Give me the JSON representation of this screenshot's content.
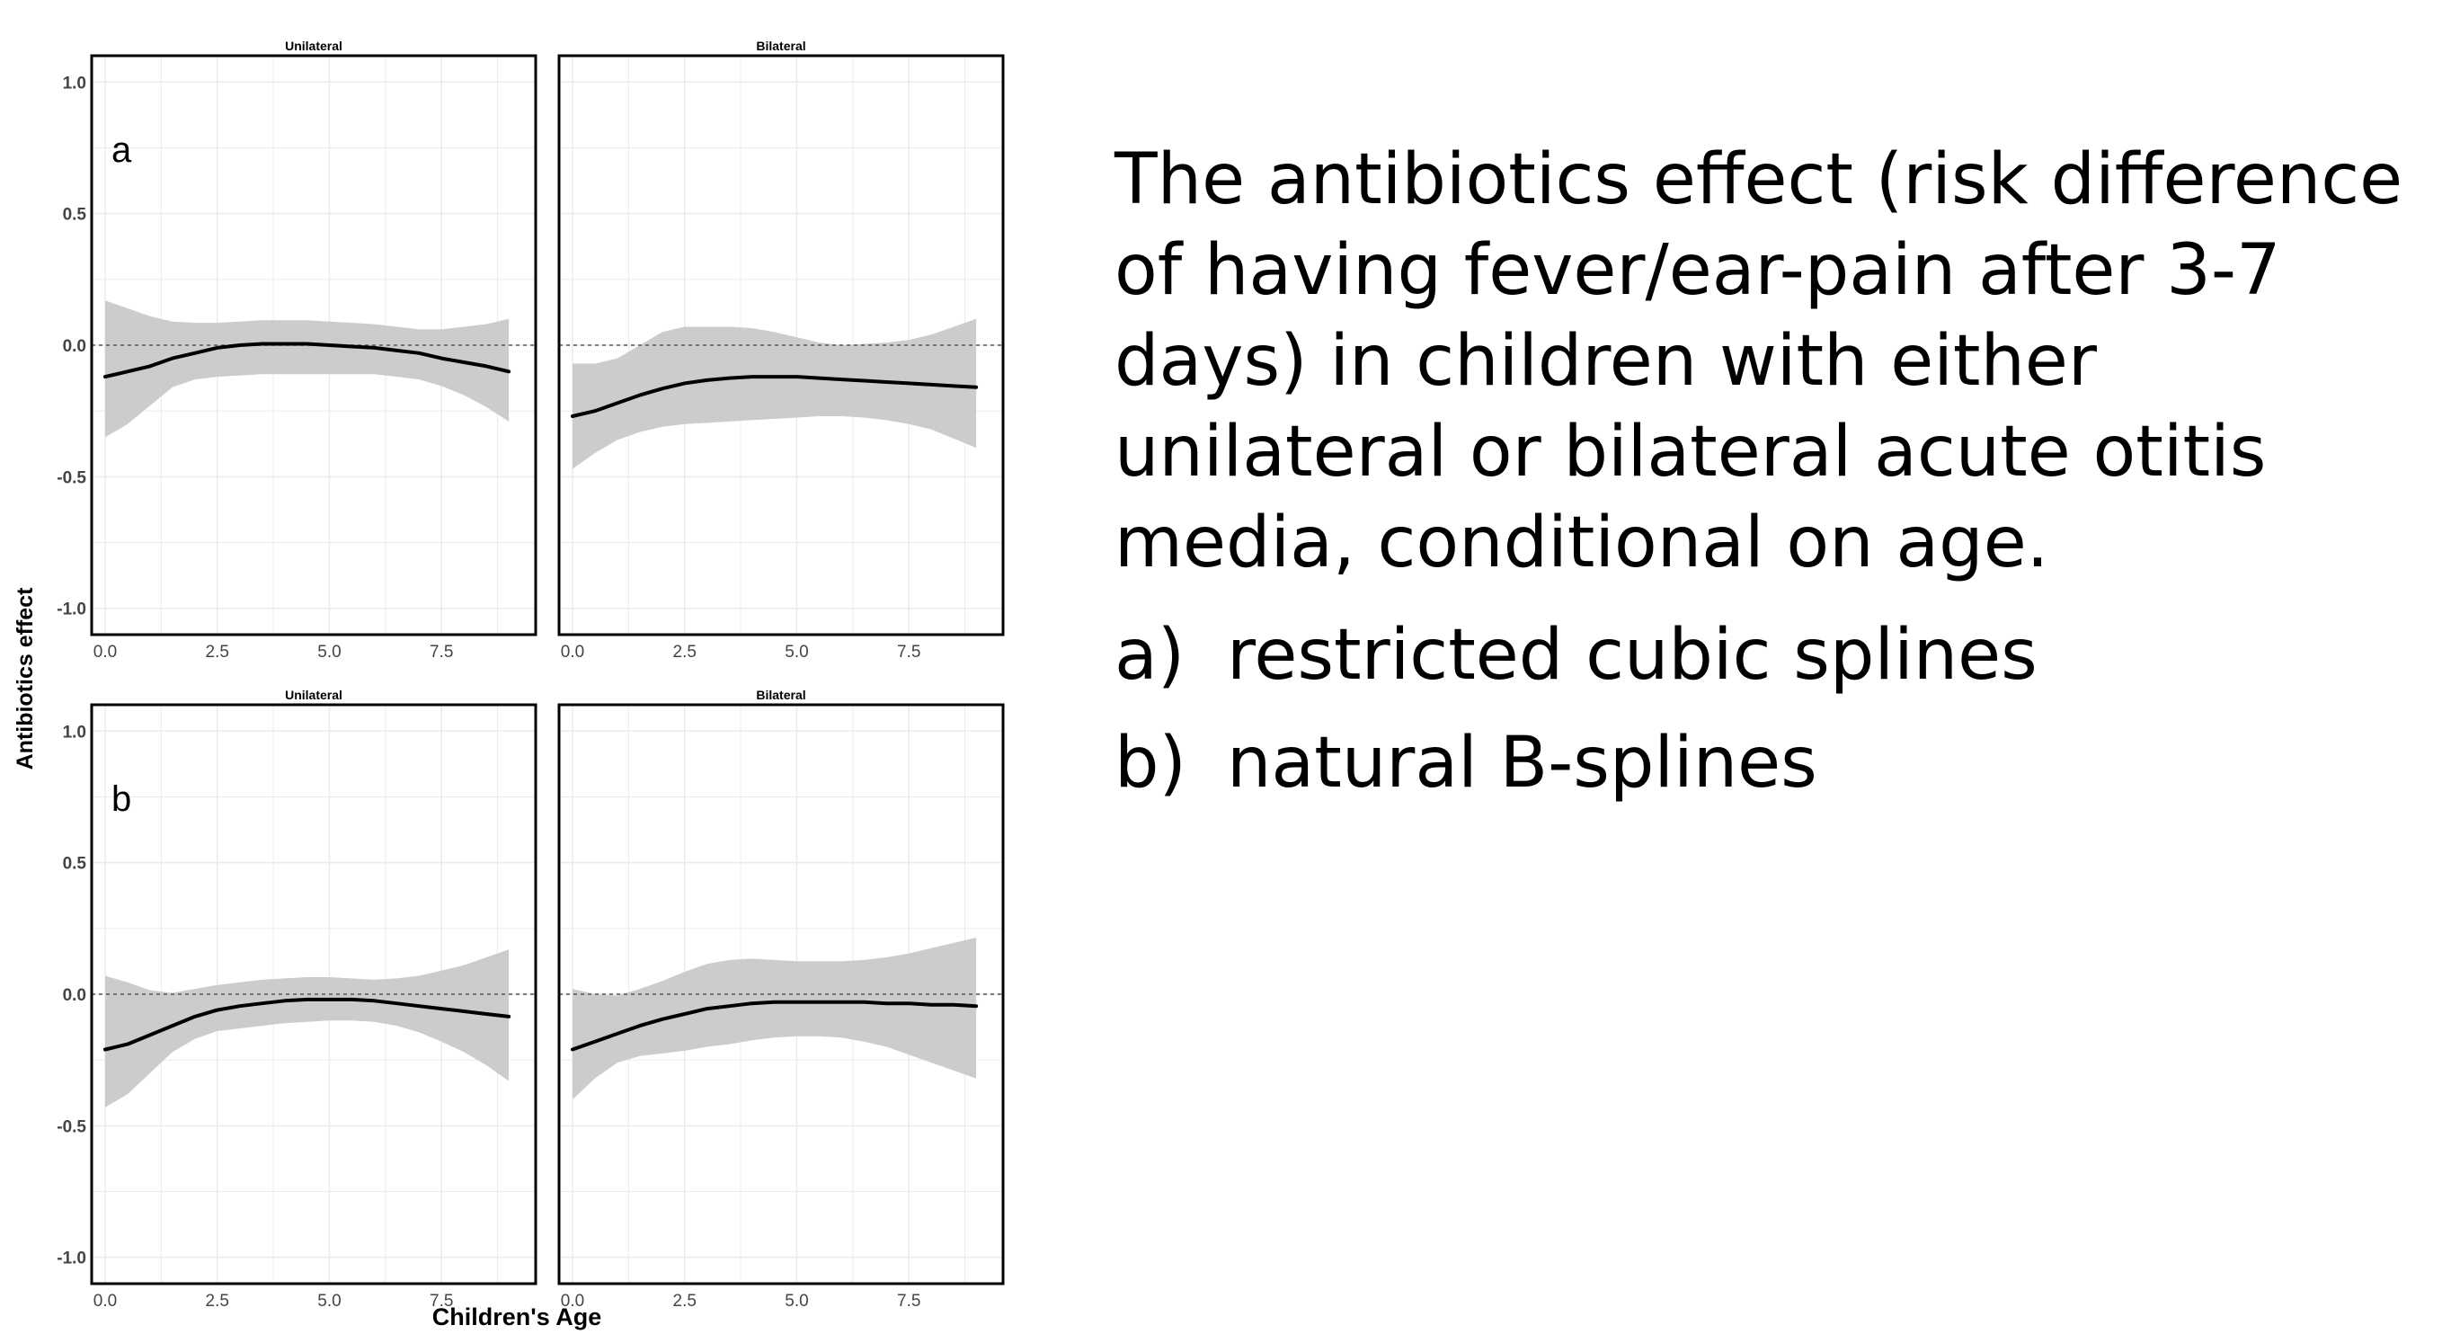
{
  "chart_data": {
    "type": "line",
    "xlabel": "Children's Age",
    "ylabel": "Antibiotics effect",
    "xlim": [
      -0.3,
      9.6
    ],
    "ylim": [
      -1.1,
      1.1
    ],
    "xticks": [
      0.0,
      2.5,
      5.0,
      7.5
    ],
    "xtick_labels": [
      "0.0",
      "2.5",
      "5.0",
      "7.5"
    ],
    "yticks": [
      -1.0,
      -0.5,
      0.0,
      0.5,
      1.0
    ],
    "ytick_labels": [
      "-1.0",
      "-0.5",
      "0.0",
      "0.5",
      "1.0"
    ],
    "grid": true,
    "reference_line_y": 0,
    "panels": [
      {
        "row_label": "a",
        "strip": "Unilateral",
        "x": [
          0,
          0.5,
          1,
          1.5,
          2,
          2.5,
          3,
          3.5,
          4,
          4.5,
          5,
          5.5,
          6,
          6.5,
          7,
          7.5,
          8,
          8.5,
          9
        ],
        "y": [
          -0.12,
          -0.1,
          -0.08,
          -0.05,
          -0.03,
          -0.01,
          0.0,
          0.005,
          0.005,
          0.005,
          0.0,
          -0.005,
          -0.01,
          -0.02,
          -0.03,
          -0.05,
          -0.065,
          -0.08,
          -0.1
        ],
        "lower": [
          -0.35,
          -0.3,
          -0.23,
          -0.16,
          -0.13,
          -0.12,
          -0.115,
          -0.11,
          -0.11,
          -0.11,
          -0.11,
          -0.11,
          -0.11,
          -0.12,
          -0.13,
          -0.155,
          -0.19,
          -0.235,
          -0.29
        ],
        "upper": [
          0.17,
          0.14,
          0.11,
          0.09,
          0.085,
          0.085,
          0.09,
          0.095,
          0.095,
          0.095,
          0.09,
          0.085,
          0.08,
          0.07,
          0.06,
          0.06,
          0.07,
          0.08,
          0.1
        ]
      },
      {
        "row_label": "",
        "strip": "Bilateral",
        "x": [
          0,
          0.5,
          1,
          1.5,
          2,
          2.5,
          3,
          3.5,
          4,
          4.5,
          5,
          5.5,
          6,
          6.5,
          7,
          7.5,
          8,
          8.5,
          9
        ],
        "y": [
          -0.27,
          -0.25,
          -0.22,
          -0.19,
          -0.165,
          -0.145,
          -0.133,
          -0.125,
          -0.12,
          -0.12,
          -0.12,
          -0.125,
          -0.13,
          -0.135,
          -0.14,
          -0.145,
          -0.15,
          -0.155,
          -0.16
        ],
        "lower": [
          -0.47,
          -0.41,
          -0.36,
          -0.33,
          -0.31,
          -0.3,
          -0.295,
          -0.29,
          -0.285,
          -0.28,
          -0.275,
          -0.27,
          -0.27,
          -0.275,
          -0.285,
          -0.3,
          -0.32,
          -0.355,
          -0.39
        ],
        "upper": [
          -0.07,
          -0.07,
          -0.05,
          0.0,
          0.05,
          0.07,
          0.07,
          0.07,
          0.065,
          0.05,
          0.03,
          0.01,
          0.0,
          0.005,
          0.01,
          0.02,
          0.04,
          0.07,
          0.1
        ]
      },
      {
        "row_label": "b",
        "strip": "Unilateral",
        "x": [
          0,
          0.5,
          1,
          1.5,
          2,
          2.5,
          3,
          3.5,
          4,
          4.5,
          5,
          5.5,
          6,
          6.5,
          7,
          7.5,
          8,
          8.5,
          9
        ],
        "y": [
          -0.21,
          -0.19,
          -0.155,
          -0.12,
          -0.085,
          -0.06,
          -0.045,
          -0.035,
          -0.025,
          -0.02,
          -0.02,
          -0.02,
          -0.025,
          -0.035,
          -0.045,
          -0.055,
          -0.065,
          -0.075,
          -0.085
        ],
        "lower": [
          -0.43,
          -0.38,
          -0.3,
          -0.22,
          -0.17,
          -0.14,
          -0.13,
          -0.12,
          -0.11,
          -0.105,
          -0.1,
          -0.1,
          -0.105,
          -0.12,
          -0.145,
          -0.18,
          -0.22,
          -0.27,
          -0.33
        ],
        "upper": [
          0.07,
          0.045,
          0.015,
          0.005,
          0.02,
          0.035,
          0.045,
          0.055,
          0.06,
          0.065,
          0.065,
          0.06,
          0.055,
          0.06,
          0.07,
          0.09,
          0.11,
          0.14,
          0.17
        ]
      },
      {
        "row_label": "",
        "strip": "Bilateral",
        "x": [
          0,
          0.5,
          1,
          1.5,
          2,
          2.5,
          3,
          3.5,
          4,
          4.5,
          5,
          5.5,
          6,
          6.5,
          7,
          7.5,
          8,
          8.5,
          9
        ],
        "y": [
          -0.21,
          -0.18,
          -0.15,
          -0.12,
          -0.095,
          -0.075,
          -0.055,
          -0.045,
          -0.035,
          -0.03,
          -0.03,
          -0.03,
          -0.03,
          -0.03,
          -0.035,
          -0.035,
          -0.04,
          -0.04,
          -0.045
        ],
        "lower": [
          -0.4,
          -0.32,
          -0.26,
          -0.235,
          -0.225,
          -0.215,
          -0.2,
          -0.19,
          -0.175,
          -0.165,
          -0.16,
          -0.16,
          -0.165,
          -0.18,
          -0.2,
          -0.23,
          -0.26,
          -0.29,
          -0.32
        ],
        "upper": [
          0.02,
          0.0,
          -0.005,
          0.02,
          0.05,
          0.085,
          0.115,
          0.13,
          0.135,
          0.13,
          0.125,
          0.125,
          0.125,
          0.13,
          0.14,
          0.155,
          0.175,
          0.195,
          0.215
        ]
      }
    ]
  },
  "caption": {
    "main": "The antibiotics effect (risk difference of having fever/ear-pain after 3-7 days) in children with either unilateral or bilateral acute otitis media, conditional on age.",
    "items": [
      {
        "marker": "a)",
        "text": "restricted cubic splines"
      },
      {
        "marker": "b)",
        "text": "natural B-splines"
      }
    ]
  },
  "colors": {
    "ribbon": "#cccccc",
    "line": "#000000",
    "grid": "#ebebeb",
    "reference": "#555555"
  }
}
